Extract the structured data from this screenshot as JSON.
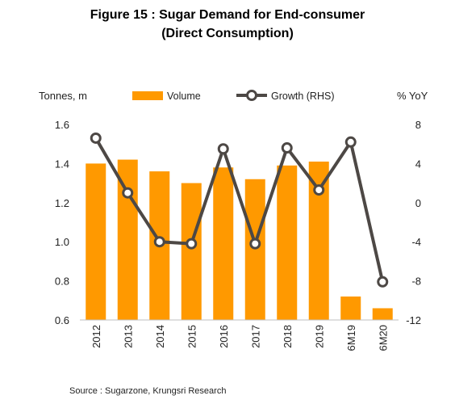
{
  "title_line1": "Figure 15 : Sugar Demand for End-consumer",
  "title_line2": "(Direct Consumption)",
  "source": "Source : Sugarzone, Krungsri Research",
  "colors": {
    "bar": "#FF9900",
    "line": "#4D4845",
    "marker_fill": "#FFFFFF"
  },
  "chart_data": {
    "type": "bar",
    "categories": [
      "2012",
      "2013",
      "2014",
      "2015",
      "2016",
      "2017",
      "2018",
      "2019",
      "6M19",
      "6M20"
    ],
    "series": [
      {
        "name": "Volume",
        "type": "bar",
        "axis": "left",
        "values": [
          1.4,
          1.42,
          1.36,
          1.3,
          1.38,
          1.32,
          1.39,
          1.41,
          0.72,
          0.66
        ]
      },
      {
        "name": "Growth (RHS)",
        "type": "line",
        "axis": "right",
        "values": [
          6.6,
          1.0,
          -4.0,
          -4.2,
          5.5,
          -4.2,
          5.6,
          1.3,
          6.2,
          -8.1
        ]
      }
    ],
    "y_left": {
      "label": "Tonnes, m",
      "min": 0.6,
      "max": 1.6,
      "ticks": [
        "1.6",
        "1.4",
        "1.2",
        "1.0",
        "0.8",
        "0.6"
      ],
      "tick_values": [
        1.6,
        1.4,
        1.2,
        1.0,
        0.8,
        0.6
      ]
    },
    "y_right": {
      "label": "% YoY",
      "min": -12,
      "max": 8,
      "ticks": [
        "8",
        "4",
        "0",
        "-4",
        "-8",
        "-12"
      ],
      "tick_values": [
        8,
        4,
        0,
        -4,
        -8,
        -12
      ]
    },
    "legend_position": "top",
    "grid": false
  }
}
